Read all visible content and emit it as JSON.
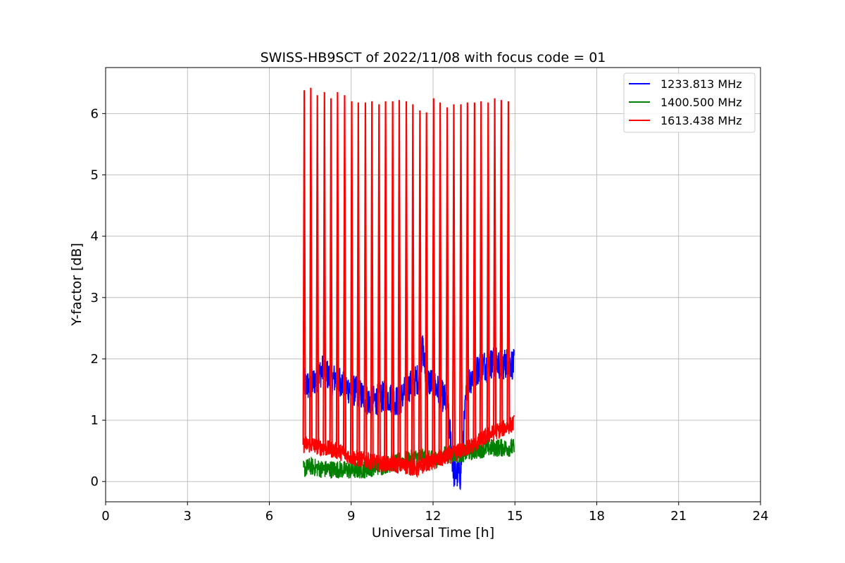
{
  "chart_data": {
    "type": "line",
    "title": "SWISS-HB9SCT of 2022/11/08 with focus code = 01",
    "xlabel": "Universal Time [h]",
    "ylabel": "Y-factor [dB]",
    "xlim": [
      0,
      24
    ],
    "ylim": [
      -0.33,
      6.75
    ],
    "xticks": [
      0,
      3,
      6,
      9,
      12,
      15,
      18,
      21,
      24
    ],
    "yticks": [
      0,
      1,
      2,
      3,
      4,
      5,
      6
    ],
    "grid": true,
    "legend_position": "top-right",
    "series": [
      {
        "name": "1233.813 MHz",
        "color": "#0000ff",
        "x": [
          7.25,
          7.5,
          7.75,
          8.0,
          8.25,
          8.5,
          8.75,
          9.0,
          9.25,
          9.5,
          9.75,
          10.0,
          10.25,
          10.5,
          10.75,
          11.0,
          11.25,
          11.5,
          11.62,
          11.75,
          12.0,
          12.25,
          12.5,
          12.6,
          12.75,
          13.0,
          13.25,
          13.5,
          13.75,
          14.0,
          14.25,
          14.5,
          14.75,
          14.97
        ],
        "y": [
          1.6,
          1.55,
          1.7,
          1.85,
          1.65,
          1.7,
          1.55,
          1.5,
          1.45,
          1.35,
          1.3,
          1.35,
          1.4,
          1.35,
          1.3,
          1.5,
          1.6,
          1.7,
          2.2,
          1.65,
          1.6,
          1.45,
          1.3,
          0.9,
          0.15,
          0.1,
          1.6,
          1.75,
          1.9,
          1.9,
          1.95,
          1.9,
          1.95,
          1.9
        ],
        "noise": 0.26
      },
      {
        "name": "1400.500 MHz",
        "color": "#008000",
        "x": [
          7.25,
          7.5,
          7.75,
          8.0,
          8.5,
          9.0,
          9.5,
          10.0,
          10.5,
          11.0,
          11.5,
          12.0,
          12.5,
          13.0,
          13.5,
          14.0,
          14.5,
          14.97
        ],
        "y": [
          0.2,
          0.25,
          0.22,
          0.2,
          0.2,
          0.18,
          0.2,
          0.25,
          0.3,
          0.35,
          0.4,
          0.35,
          0.45,
          0.45,
          0.5,
          0.55,
          0.55,
          0.55
        ],
        "noise": 0.15
      },
      {
        "name": "1613.438 MHz",
        "color": "#ff0000",
        "x": [
          7.25,
          7.5,
          8.0,
          8.5,
          9.0,
          9.5,
          10.0,
          10.5,
          11.0,
          11.5,
          11.7,
          12.0,
          12.5,
          13.0,
          13.5,
          14.0,
          14.5,
          14.97
        ],
        "y": [
          0.6,
          0.6,
          0.55,
          0.5,
          0.4,
          0.35,
          0.3,
          0.28,
          0.25,
          0.2,
          0.3,
          0.32,
          0.4,
          0.5,
          0.6,
          0.75,
          0.85,
          0.95
        ],
        "noise": 0.14,
        "spikes": {
          "x": [
            7.28,
            7.52,
            7.76,
            8.02,
            8.26,
            8.5,
            8.76,
            9.02,
            9.26,
            9.52,
            9.76,
            10.02,
            10.26,
            10.52,
            10.76,
            11.02,
            11.26,
            11.52,
            11.76,
            12.02,
            12.26,
            12.52,
            12.76,
            13.02,
            13.26,
            13.52,
            13.76,
            14.02,
            14.26,
            14.5,
            14.76
          ],
          "y": [
            6.38,
            6.42,
            6.3,
            6.35,
            6.25,
            6.35,
            6.3,
            6.2,
            6.18,
            6.18,
            6.2,
            6.15,
            6.2,
            6.2,
            6.22,
            6.2,
            6.15,
            6.05,
            6.02,
            6.25,
            6.18,
            6.1,
            6.15,
            6.15,
            6.18,
            6.18,
            6.2,
            6.18,
            6.25,
            6.22,
            6.2
          ]
        }
      }
    ]
  }
}
